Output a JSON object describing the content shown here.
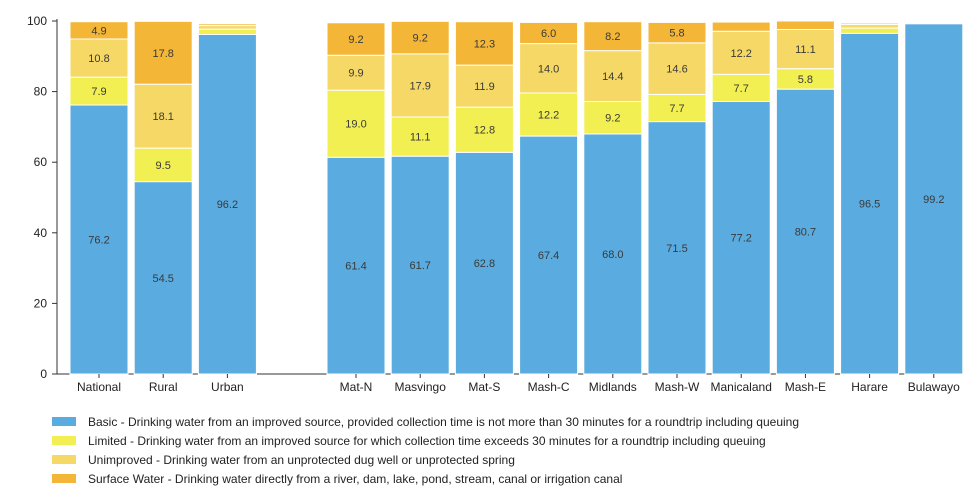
{
  "chart_data": {
    "type": "bar",
    "stacked": true,
    "title": "",
    "xlabel": "",
    "ylabel": "",
    "ylim": [
      0,
      100
    ],
    "yticks": [
      0,
      20,
      40,
      60,
      80,
      100
    ],
    "gap_after_index": 2,
    "grid": false,
    "legend_position": "bottom",
    "categories": [
      "National",
      "Rural",
      "Urban",
      "Mat-N",
      "Masvingo",
      "Mat-S",
      "Mash-C",
      "Midlands",
      "Mash-W",
      "Manicaland",
      "Mash-E",
      "Harare",
      "Bulawayo"
    ],
    "series": [
      {
        "name": "Basic - Drinking water from an improved source, provided collection time is not more than 30 minutes for a roundtrip including queuing",
        "color": "#5aabdf",
        "values": [
          76.2,
          54.5,
          96.2,
          61.4,
          61.7,
          62.8,
          67.4,
          68.0,
          71.5,
          77.2,
          80.7,
          96.5,
          99.2
        ],
        "labels": [
          "76.2",
          "54.5",
          "96.2",
          "61.4",
          "61.7",
          "62.8",
          "67.4",
          "68.0",
          "71.5",
          "77.2",
          "80.7",
          "96.5",
          "99.2"
        ]
      },
      {
        "name": "Limited - Drinking water from an improved source for which collection time exceeds 30 minutes for a roundtrip including queuing",
        "color": "#f2ef52",
        "values": [
          7.9,
          9.5,
          1.5,
          19.0,
          11.1,
          12.8,
          12.2,
          9.2,
          7.7,
          7.7,
          5.8,
          1.5,
          0
        ],
        "labels": [
          "7.9",
          "9.5",
          "",
          "19.0",
          "11.1",
          "12.8",
          "12.2",
          "9.2",
          "7.7",
          "7.7",
          "5.8",
          "",
          ""
        ]
      },
      {
        "name": "Unimproved - Drinking water from an unprotected dug well or unprotected spring",
        "color": "#f5d865",
        "values": [
          10.8,
          18.1,
          1.0,
          9.9,
          17.9,
          11.9,
          14.0,
          14.4,
          14.6,
          12.2,
          11.1,
          1.0,
          0
        ],
        "labels": [
          "10.8",
          "18.1",
          "",
          "9.9",
          "17.9",
          "11.9",
          "14.0",
          "14.4",
          "14.6",
          "12.2",
          "11.1",
          "",
          ""
        ]
      },
      {
        "name": "Surface Water - Drinking water directly from a river, dam, lake, pond, stream, canal or irrigation canal",
        "color": "#f4b637",
        "values": [
          4.9,
          17.8,
          0.5,
          9.2,
          9.2,
          12.3,
          6.0,
          8.2,
          5.8,
          2.6,
          2.4,
          0.4,
          0
        ],
        "labels": [
          "4.9",
          "17.8",
          "",
          "9.2",
          "9.2",
          "12.3",
          "6.0",
          "8.2",
          "5.8",
          "",
          "",
          "",
          ""
        ]
      }
    ]
  }
}
